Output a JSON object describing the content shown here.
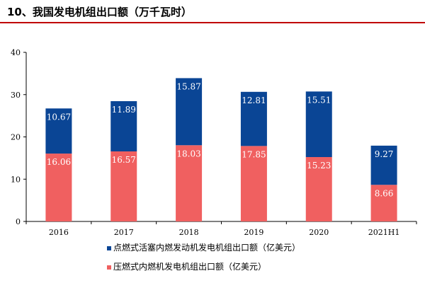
{
  "title": "10、我国发电机组出口额（万千瓦时）",
  "colors": {
    "bottom": "#f06060",
    "top": "#0a4595",
    "axis": "#000000",
    "title_rule": "#c00000"
  },
  "chart_data": {
    "type": "bar",
    "stacked": true,
    "title": "10、我国发电机组出口额（万千瓦时）",
    "categories": [
      "2016",
      "2017",
      "2018",
      "2019",
      "2020",
      "2021H1"
    ],
    "series": [
      {
        "name": "压燃式内燃机发电机组出口额（亿美元）",
        "values": [
          16.06,
          16.57,
          18.03,
          17.85,
          15.23,
          8.66
        ],
        "color": "#f06060"
      },
      {
        "name": "点燃式活塞内燃发动机发电机组出口额（亿美元）",
        "values": [
          10.67,
          11.89,
          15.87,
          12.81,
          15.51,
          9.27
        ],
        "color": "#0a4595"
      }
    ],
    "ylim": [
      0,
      40
    ],
    "yticks": [
      0,
      10,
      20,
      30,
      40
    ],
    "grid": false,
    "legend_placement": "bottom",
    "legend_order": [
      1,
      0
    ]
  }
}
